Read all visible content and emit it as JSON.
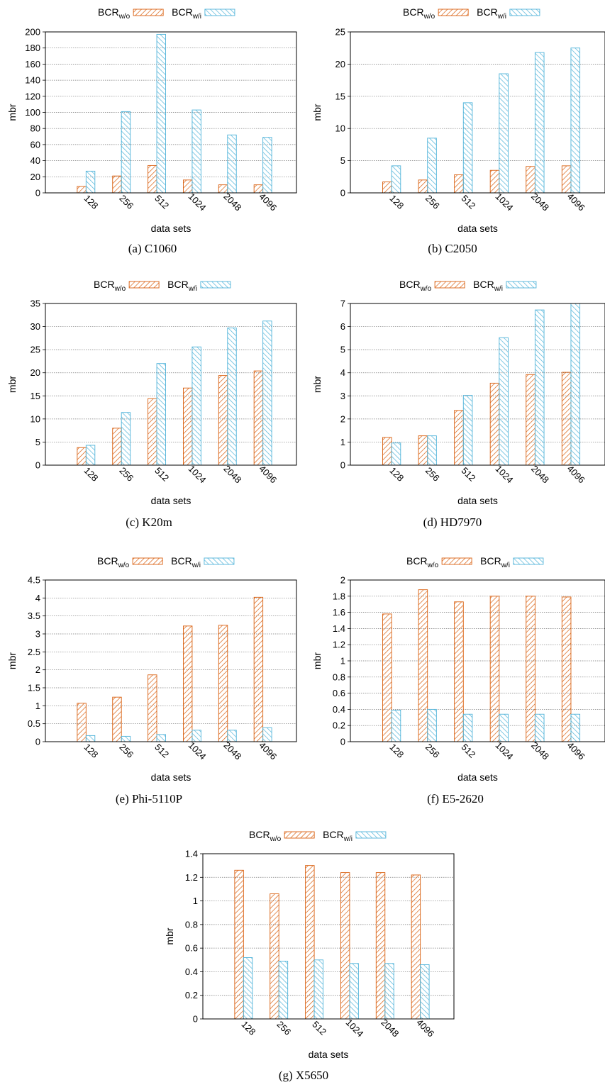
{
  "legend": {
    "base": "BCR",
    "wo_sub": "w/o",
    "wi_sub": "w/i"
  },
  "colors": {
    "wo": "#d95f0e",
    "wi": "#4fb3d9"
  },
  "chart_data": [
    {
      "type": "bar",
      "caption": "(a)  C1060",
      "xlabel": "data sets",
      "ylabel": "mbr",
      "ylim": [
        0,
        200
      ],
      "yticks": [
        "0",
        "20",
        "40",
        "60",
        "80",
        "100",
        "120",
        "140",
        "160",
        "180",
        "200"
      ],
      "yticks_values": [
        0,
        20,
        40,
        60,
        80,
        100,
        120,
        140,
        160,
        180,
        200
      ],
      "categories": [
        "128",
        "256",
        "512",
        "1024",
        "2048",
        "4096"
      ],
      "series": [
        {
          "name": "BCR w/o",
          "values": [
            8,
            21,
            34,
            16,
            10,
            10
          ]
        },
        {
          "name": "BCR w/i",
          "values": [
            27,
            101,
            197,
            103,
            72,
            69
          ]
        }
      ],
      "grid": true,
      "legend_position": "top"
    },
    {
      "type": "bar",
      "caption": "(b)  C2050",
      "xlabel": "data sets",
      "ylabel": "mbr",
      "ylim": [
        0,
        25
      ],
      "yticks": [
        "0",
        "5",
        "10",
        "15",
        "20",
        "25"
      ],
      "yticks_values": [
        0,
        5,
        10,
        15,
        20,
        25
      ],
      "categories": [
        "128",
        "256",
        "512",
        "1024",
        "2048",
        "4096"
      ],
      "series": [
        {
          "name": "BCR w/o",
          "values": [
            1.7,
            2.0,
            2.8,
            3.5,
            4.1,
            4.2
          ]
        },
        {
          "name": "BCR w/i",
          "values": [
            4.2,
            8.5,
            14.0,
            18.5,
            21.8,
            22.5
          ]
        }
      ],
      "grid": true,
      "legend_position": "top"
    },
    {
      "type": "bar",
      "caption": "(c)  K20m",
      "xlabel": "data sets",
      "ylabel": "mbr",
      "ylim": [
        0,
        35
      ],
      "yticks": [
        "0",
        "5",
        "10",
        "15",
        "20",
        "25",
        "30",
        "35"
      ],
      "yticks_values": [
        0,
        5,
        10,
        15,
        20,
        25,
        30,
        35
      ],
      "categories": [
        "128",
        "256",
        "512",
        "1024",
        "2048",
        "4096"
      ],
      "series": [
        {
          "name": "BCR w/o",
          "values": [
            3.8,
            8.0,
            14.4,
            16.7,
            19.4,
            20.4
          ]
        },
        {
          "name": "BCR w/i",
          "values": [
            4.3,
            11.4,
            22.0,
            25.6,
            29.7,
            31.2
          ]
        }
      ],
      "grid": true,
      "legend_position": "top"
    },
    {
      "type": "bar",
      "caption": "(d)  HD7970",
      "xlabel": "data sets",
      "ylabel": "mbr",
      "ylim": [
        0,
        7
      ],
      "yticks": [
        "0",
        "1",
        "2",
        "3",
        "4",
        "5",
        "6",
        "7"
      ],
      "yticks_values": [
        0,
        1,
        2,
        3,
        4,
        5,
        6,
        7
      ],
      "categories": [
        "128",
        "256",
        "512",
        "1024",
        "2048",
        "4096"
      ],
      "series": [
        {
          "name": "BCR w/o",
          "values": [
            1.2,
            1.27,
            2.37,
            3.55,
            3.92,
            4.02
          ]
        },
        {
          "name": "BCR w/i",
          "values": [
            0.96,
            1.27,
            3.02,
            5.52,
            6.72,
            7.0
          ]
        }
      ],
      "grid": true,
      "legend_position": "top"
    },
    {
      "type": "bar",
      "caption": "(e)  Phi-5110P",
      "xlabel": "data sets",
      "ylabel": "mbr",
      "ylim": [
        0,
        4.5
      ],
      "yticks": [
        "0",
        "0.5",
        "1",
        "1.5",
        "2",
        "2.5",
        "3",
        "3.5",
        "4",
        "4.5"
      ],
      "yticks_values": [
        0,
        0.5,
        1,
        1.5,
        2,
        2.5,
        3,
        3.5,
        4,
        4.5
      ],
      "categories": [
        "128",
        "256",
        "512",
        "1024",
        "2048",
        "4096"
      ],
      "series": [
        {
          "name": "BCR w/o",
          "values": [
            1.07,
            1.24,
            1.86,
            3.22,
            3.24,
            4.02
          ]
        },
        {
          "name": "BCR w/i",
          "values": [
            0.17,
            0.15,
            0.2,
            0.32,
            0.32,
            0.39
          ]
        }
      ],
      "grid": true,
      "legend_position": "top"
    },
    {
      "type": "bar",
      "caption": "(f)  E5-2620",
      "xlabel": "data sets",
      "ylabel": "mbr",
      "ylim": [
        0,
        2
      ],
      "yticks": [
        "0",
        "0.2",
        "0.4",
        "0.6",
        "0.8",
        "1",
        "1.2",
        "1.4",
        "1.6",
        "1.8",
        "2"
      ],
      "yticks_values": [
        0,
        0.2,
        0.4,
        0.6,
        0.8,
        1,
        1.2,
        1.4,
        1.6,
        1.8,
        2
      ],
      "categories": [
        "128",
        "256",
        "512",
        "1024",
        "2048",
        "4096"
      ],
      "series": [
        {
          "name": "BCR w/o",
          "values": [
            1.58,
            1.88,
            1.73,
            1.8,
            1.8,
            1.79
          ]
        },
        {
          "name": "BCR w/i",
          "values": [
            0.39,
            0.4,
            0.34,
            0.34,
            0.34,
            0.34
          ]
        }
      ],
      "grid": true,
      "legend_position": "top"
    },
    {
      "type": "bar",
      "caption": "(g)  X5650",
      "xlabel": "data sets",
      "ylabel": "mbr",
      "ylim": [
        0,
        1.4
      ],
      "yticks": [
        "0",
        "0.2",
        "0.4",
        "0.6",
        "0.8",
        "1",
        "1.2",
        "1.4"
      ],
      "yticks_values": [
        0,
        0.2,
        0.4,
        0.6,
        0.8,
        1,
        1.2,
        1.4
      ],
      "categories": [
        "128",
        "256",
        "512",
        "1024",
        "2048",
        "4096"
      ],
      "series": [
        {
          "name": "BCR w/o",
          "values": [
            1.26,
            1.06,
            1.3,
            1.24,
            1.24,
            1.22
          ]
        },
        {
          "name": "BCR w/i",
          "values": [
            0.52,
            0.49,
            0.5,
            0.47,
            0.47,
            0.46
          ]
        }
      ],
      "grid": true,
      "legend_position": "top"
    }
  ]
}
